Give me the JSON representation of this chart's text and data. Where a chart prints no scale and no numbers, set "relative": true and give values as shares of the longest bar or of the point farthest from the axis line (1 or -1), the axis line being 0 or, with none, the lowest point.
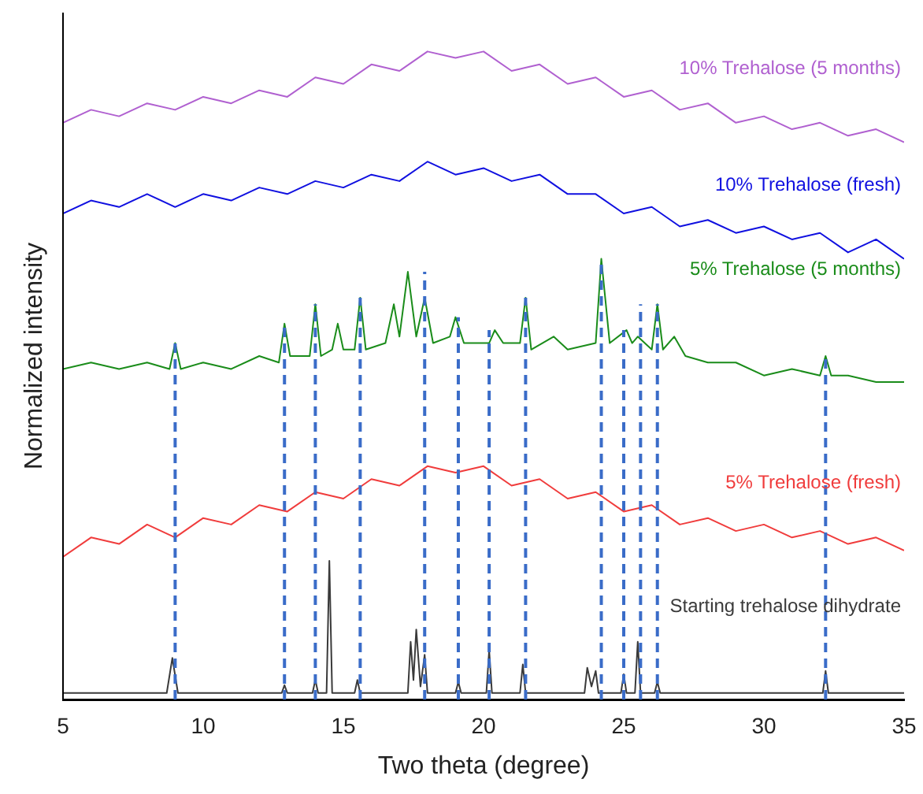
{
  "chart_data": {
    "type": "line",
    "relative": true,
    "xlabel": "Two theta (degree)",
    "ylabel": "Normalized intensity",
    "xlim": [
      5,
      35
    ],
    "xticks": [
      5,
      10,
      15,
      20,
      25,
      30,
      35
    ],
    "tick_labels": "x",
    "legend": false,
    "grid": false,
    "marker": "none",
    "line_style": "solid",
    "series": [
      {
        "name": "Starting trehalose dihydrate",
        "color": "#3a3a3a",
        "x": [
          5,
          8.7,
          8.9,
          9.1,
          12.8,
          12.9,
          13.0,
          13.9,
          14.0,
          14.1,
          14.4,
          14.5,
          14.6,
          15.4,
          15.5,
          15.6,
          17.3,
          17.4,
          17.5,
          17.6,
          17.75,
          17.9,
          18.0,
          19.0,
          19.1,
          19.2,
          20.1,
          20.2,
          20.3,
          21.3,
          21.4,
          21.5,
          23.6,
          23.7,
          23.85,
          24.0,
          24.1,
          24.9,
          25.0,
          25.1,
          25.4,
          25.5,
          25.6,
          26.1,
          26.2,
          26.3,
          32.1,
          32.2,
          32.3,
          35
        ],
        "values": [
          0.01,
          0.01,
          0.064,
          0.01,
          0.01,
          0.022,
          0.01,
          0.01,
          0.03,
          0.01,
          0.01,
          0.214,
          0.01,
          0.01,
          0.03,
          0.01,
          0.01,
          0.089,
          0.03,
          0.108,
          0.02,
          0.069,
          0.01,
          0.01,
          0.027,
          0.01,
          0.01,
          0.076,
          0.01,
          0.01,
          0.054,
          0.01,
          0.01,
          0.049,
          0.02,
          0.044,
          0.01,
          0.01,
          0.039,
          0.01,
          0.01,
          0.089,
          0.01,
          0.01,
          0.027,
          0.01,
          0.01,
          0.044,
          0.01,
          0.01
        ]
      },
      {
        "name": "5% Trehalose (fresh)",
        "color": "#f03c3c",
        "x": [
          5,
          6,
          7,
          8,
          9,
          10,
          11,
          12,
          13,
          14,
          15,
          16,
          17,
          18,
          19,
          20,
          21,
          22,
          23,
          24,
          25,
          26,
          27,
          28,
          29,
          30,
          31,
          32,
          33,
          34,
          35
        ],
        "values": [
          0.22,
          0.25,
          0.24,
          0.27,
          0.25,
          0.28,
          0.27,
          0.3,
          0.29,
          0.32,
          0.31,
          0.34,
          0.33,
          0.36,
          0.35,
          0.36,
          0.33,
          0.34,
          0.31,
          0.32,
          0.29,
          0.3,
          0.27,
          0.28,
          0.26,
          0.27,
          0.25,
          0.26,
          0.24,
          0.25,
          0.23
        ]
      },
      {
        "name": "5% Trehalose (5 months)",
        "color": "#1a8c1a",
        "x": [
          5,
          6,
          7,
          8,
          8.8,
          9.0,
          9.2,
          10,
          11,
          12,
          12.7,
          12.9,
          13.1,
          13.8,
          14.0,
          14.2,
          14.6,
          14.8,
          15.0,
          15.4,
          15.6,
          15.8,
          16.5,
          16.8,
          17.0,
          17.3,
          17.6,
          17.9,
          18.2,
          18.8,
          19.0,
          19.3,
          20.2,
          20.4,
          20.7,
          21.3,
          21.5,
          21.7,
          22.5,
          23,
          24.0,
          24.2,
          24.5,
          25.1,
          25.3,
          25.5,
          26.0,
          26.2,
          26.4,
          26.8,
          27.2,
          28,
          29,
          30,
          31,
          32.0,
          32.2,
          32.4,
          33,
          34,
          35
        ],
        "values": [
          0.51,
          0.52,
          0.51,
          0.52,
          0.51,
          0.55,
          0.51,
          0.52,
          0.51,
          0.53,
          0.52,
          0.58,
          0.53,
          0.53,
          0.61,
          0.53,
          0.54,
          0.58,
          0.54,
          0.54,
          0.62,
          0.54,
          0.55,
          0.61,
          0.56,
          0.66,
          0.56,
          0.62,
          0.55,
          0.56,
          0.59,
          0.55,
          0.55,
          0.57,
          0.55,
          0.55,
          0.62,
          0.54,
          0.56,
          0.54,
          0.55,
          0.68,
          0.55,
          0.57,
          0.55,
          0.56,
          0.54,
          0.61,
          0.54,
          0.56,
          0.53,
          0.52,
          0.52,
          0.5,
          0.51,
          0.5,
          0.53,
          0.5,
          0.5,
          0.49,
          0.49
        ]
      },
      {
        "name": "10% Trehalose (fresh)",
        "color": "#1010e0",
        "x": [
          5,
          6,
          7,
          8,
          9,
          10,
          11,
          12,
          13,
          14,
          15,
          16,
          17,
          18,
          19,
          20,
          21,
          22,
          23,
          24,
          25,
          26,
          27,
          28,
          29,
          30,
          31,
          32,
          33,
          34,
          35
        ],
        "values": [
          0.75,
          0.77,
          0.76,
          0.78,
          0.76,
          0.78,
          0.77,
          0.79,
          0.78,
          0.8,
          0.79,
          0.81,
          0.8,
          0.83,
          0.81,
          0.82,
          0.8,
          0.81,
          0.78,
          0.78,
          0.75,
          0.76,
          0.73,
          0.74,
          0.72,
          0.73,
          0.71,
          0.72,
          0.69,
          0.71,
          0.68
        ]
      },
      {
        "name": "10% Trehalose (5 months)",
        "color": "#b060d0",
        "x": [
          5,
          6,
          7,
          8,
          9,
          10,
          11,
          12,
          13,
          14,
          15,
          16,
          17,
          18,
          19,
          20,
          21,
          22,
          23,
          24,
          25,
          26,
          27,
          28,
          29,
          30,
          31,
          32,
          33,
          34,
          35
        ],
        "values": [
          0.89,
          0.91,
          0.9,
          0.92,
          0.91,
          0.93,
          0.92,
          0.94,
          0.93,
          0.96,
          0.95,
          0.98,
          0.97,
          1.0,
          0.99,
          1.0,
          0.97,
          0.98,
          0.95,
          0.96,
          0.93,
          0.94,
          0.91,
          0.92,
          0.89,
          0.9,
          0.88,
          0.89,
          0.87,
          0.88,
          0.86
        ]
      }
    ],
    "ref_lines": [
      {
        "axis": "x",
        "value": 9,
        "color": "#3a6cc8",
        "line_style": "dashed"
      },
      {
        "axis": "x",
        "value": 12.9,
        "color": "#3a6cc8",
        "line_style": "dashed"
      },
      {
        "axis": "x",
        "value": 14,
        "color": "#3a6cc8",
        "line_style": "dashed"
      },
      {
        "axis": "x",
        "value": 15.6,
        "color": "#3a6cc8",
        "line_style": "dashed"
      },
      {
        "axis": "x",
        "value": 17.9,
        "color": "#3a6cc8",
        "line_style": "dashed"
      },
      {
        "axis": "x",
        "value": 19.1,
        "color": "#3a6cc8",
        "line_style": "dashed"
      },
      {
        "axis": "x",
        "value": 20.2,
        "color": "#3a6cc8",
        "line_style": "dashed"
      },
      {
        "axis": "x",
        "value": 21.5,
        "color": "#3a6cc8",
        "line_style": "dashed"
      },
      {
        "axis": "x",
        "value": 24.2,
        "color": "#3a6cc8",
        "line_style": "dashed"
      },
      {
        "axis": "x",
        "value": 25,
        "color": "#3a6cc8",
        "line_style": "dashed"
      },
      {
        "axis": "x",
        "value": 25.6,
        "color": "#3a6cc8",
        "line_style": "dashed"
      },
      {
        "axis": "x",
        "value": 26.2,
        "color": "#3a6cc8",
        "line_style": "dashed"
      },
      {
        "axis": "x",
        "value": 32.2,
        "color": "#3a6cc8",
        "line_style": "dashed"
      }
    ]
  }
}
